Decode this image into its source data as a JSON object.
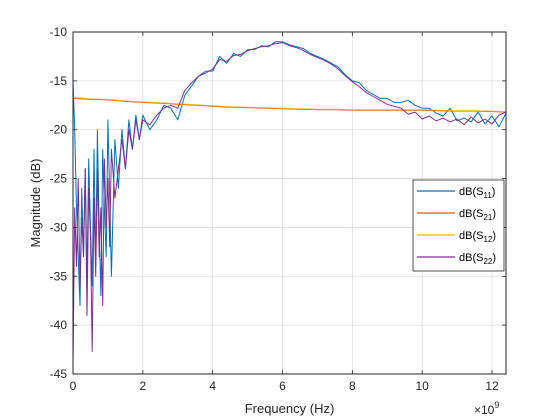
{
  "chart_data": {
    "type": "line",
    "xlabel": "Frequency (Hz)",
    "ylabel": "Magnitude (dB)",
    "x_exponent_label": "×10",
    "x_exponent_power": "9",
    "x_unit_scale": 1000000000,
    "xlim": [
      0,
      12400000000
    ],
    "ylim": [
      -45,
      -10
    ],
    "xticks": [
      0,
      2000000000,
      4000000000,
      6000000000,
      8000000000,
      10000000000,
      12000000000
    ],
    "xtick_labels": [
      "0",
      "2",
      "4",
      "6",
      "8",
      "10",
      "12"
    ],
    "yticks": [
      -45,
      -40,
      -35,
      -30,
      -25,
      -20,
      -15,
      -10
    ],
    "ytick_labels": [
      "-45",
      "-40",
      "-35",
      "-30",
      "-25",
      "-20",
      "-15",
      "-10"
    ],
    "grid": true,
    "legend_position": "right",
    "series": [
      {
        "name": "dB(S11)",
        "legend_main": "dB(S",
        "legend_sub": "11",
        "legend_close": ")",
        "color": "#0072BD",
        "x": [
          0,
          50000000,
          100000000,
          150000000,
          200000000,
          250000000,
          300000000,
          350000000,
          400000000,
          450000000,
          500000000,
          550000000,
          600000000,
          650000000,
          700000000,
          750000000,
          800000000,
          850000000,
          900000000,
          950000000,
          1000000000,
          1050000000,
          1100000000,
          1200000000,
          1300000000,
          1400000000,
          1500000000,
          1600000000,
          1700000000,
          1800000000,
          1900000000,
          2000000000,
          2200000000,
          2400000000,
          2600000000,
          2800000000,
          3000000000,
          3200000000,
          3400000000,
          3600000000,
          3800000000,
          4000000000,
          4200000000,
          4400000000,
          4600000000,
          4800000000,
          5000000000,
          5200000000,
          5400000000,
          5600000000,
          5800000000,
          6000000000,
          6200000000,
          6400000000,
          6600000000,
          6800000000,
          7000000000,
          7200000000,
          7400000000,
          7600000000,
          7800000000,
          8000000000,
          8200000000,
          8400000000,
          8600000000,
          8800000000,
          9000000000,
          9200000000,
          9400000000,
          9600000000,
          9800000000,
          10000000000,
          10200000000,
          10400000000,
          10600000000,
          10800000000,
          11000000000,
          11200000000,
          11400000000,
          11600000000,
          11800000000,
          12000000000,
          12200000000,
          12400000000
        ],
        "y": [
          -15,
          -20,
          -28,
          -33,
          -38,
          -26,
          -33,
          -24,
          -35,
          -23,
          -30,
          -36,
          -22,
          -34,
          -20,
          -30,
          -37,
          -22,
          -28,
          -33,
          -19,
          -27,
          -35,
          -21,
          -26,
          -20,
          -24,
          -19,
          -22,
          -18.5,
          -21,
          -18.5,
          -20,
          -19,
          -17.5,
          -17.8,
          -19,
          -16.5,
          -15.5,
          -14.5,
          -14,
          -14,
          -12.5,
          -13.2,
          -12.2,
          -12.5,
          -11.8,
          -11.8,
          -11.4,
          -11.5,
          -11,
          -11,
          -11.3,
          -11.5,
          -11.7,
          -12.2,
          -12.5,
          -12.8,
          -13.2,
          -13.6,
          -14.4,
          -15,
          -15.2,
          -16,
          -16.4,
          -16.8,
          -16.8,
          -17.2,
          -17.2,
          -17,
          -17.5,
          -17.8,
          -17.8,
          -18.3,
          -18.6,
          -17.8,
          -19.1,
          -18.8,
          -19.2,
          -18.2,
          -19.4,
          -18.6,
          -19.7,
          -18.3
        ]
      },
      {
        "name": "dB(S21)",
        "legend_main": "dB(S",
        "legend_sub": "21",
        "legend_close": ")",
        "color": "#D95319",
        "x": [
          0,
          500000000,
          1000000000,
          1500000000,
          2000000000,
          2500000000,
          3000000000,
          3500000000,
          4000000000,
          4500000000,
          5000000000,
          5500000000,
          6000000000,
          6500000000,
          7000000000,
          7500000000,
          8000000000,
          8500000000,
          9000000000,
          9500000000,
          10000000000,
          10500000000,
          11000000000,
          11500000000,
          12000000000,
          12400000000
        ],
        "y": [
          -16.8,
          -16.9,
          -16.95,
          -17.1,
          -17.2,
          -17.3,
          -17.4,
          -17.5,
          -17.6,
          -17.7,
          -17.75,
          -17.8,
          -17.85,
          -17.9,
          -17.95,
          -17.95,
          -18.0,
          -18.0,
          -18.0,
          -18.0,
          -18.0,
          -18.05,
          -18.1,
          -18.1,
          -18.15,
          -18.2
        ]
      },
      {
        "name": "dB(S12)",
        "legend_main": "dB(S",
        "legend_sub": "12",
        "legend_close": ")",
        "color": "#EDB120",
        "x": [
          0,
          500000000,
          1000000000,
          1500000000,
          2000000000,
          2500000000,
          3000000000,
          3500000000,
          4000000000,
          4500000000,
          5000000000,
          5500000000,
          6000000000,
          6500000000,
          7000000000,
          7500000000,
          8000000000,
          8500000000,
          9000000000,
          9500000000,
          10000000000,
          10500000000,
          11000000000,
          11500000000,
          12000000000,
          12400000000
        ],
        "y": [
          -16.7,
          -16.85,
          -16.9,
          -17.05,
          -17.15,
          -17.25,
          -17.35,
          -17.45,
          -17.55,
          -17.65,
          -17.7,
          -17.75,
          -17.8,
          -17.85,
          -17.9,
          -17.9,
          -17.95,
          -17.95,
          -17.95,
          -17.95,
          -17.95,
          -18.0,
          -18.05,
          -18.05,
          -18.1,
          -18.15
        ]
      },
      {
        "name": "dB(S22)",
        "legend_main": "dB(S",
        "legend_sub": "22",
        "legend_close": ")",
        "color": "#7E2F8E",
        "x": [
          0,
          50000000,
          100000000,
          150000000,
          200000000,
          250000000,
          300000000,
          350000000,
          400000000,
          450000000,
          500000000,
          550000000,
          600000000,
          650000000,
          700000000,
          750000000,
          800000000,
          850000000,
          900000000,
          950000000,
          1000000000,
          1050000000,
          1100000000,
          1200000000,
          1300000000,
          1400000000,
          1500000000,
          1600000000,
          1700000000,
          1800000000,
          1900000000,
          2000000000,
          2200000000,
          2400000000,
          2600000000,
          2800000000,
          3000000000,
          3200000000,
          3400000000,
          3600000000,
          3800000000,
          4000000000,
          4200000000,
          4400000000,
          4600000000,
          4800000000,
          5000000000,
          5200000000,
          5400000000,
          5600000000,
          5800000000,
          6000000000,
          6200000000,
          6400000000,
          6600000000,
          6800000000,
          7000000000,
          7200000000,
          7400000000,
          7600000000,
          7800000000,
          8000000000,
          8200000000,
          8400000000,
          8600000000,
          8800000000,
          9000000000,
          9200000000,
          9400000000,
          9600000000,
          9800000000,
          10000000000,
          10200000000,
          10400000000,
          10600000000,
          10800000000,
          11000000000,
          11200000000,
          11400000000,
          11600000000,
          11800000000,
          12000000000,
          12200000000,
          12400000000
        ],
        "y": [
          -44,
          -28,
          -34,
          -25,
          -36,
          -29,
          -33,
          -24,
          -39,
          -26,
          -31,
          -42.7,
          -27,
          -35,
          -24,
          -33,
          -28,
          -38,
          -23,
          -30,
          -25,
          -32,
          -22,
          -27,
          -24,
          -21,
          -24,
          -20,
          -22,
          -19,
          -21,
          -19,
          -19.5,
          -18.5,
          -17.8,
          -17.5,
          -17.8,
          -16,
          -15.2,
          -14.5,
          -14.2,
          -13.8,
          -12.8,
          -13,
          -12.4,
          -12.3,
          -11.9,
          -11.7,
          -11.5,
          -11.4,
          -11.2,
          -11.1,
          -11.4,
          -11.6,
          -11.9,
          -12.3,
          -12.6,
          -12.9,
          -13.3,
          -13.8,
          -14.5,
          -15.1,
          -15.6,
          -16.2,
          -16.6,
          -17,
          -17.4,
          -17.6,
          -17.8,
          -18.4,
          -18.2,
          -18.9,
          -18.6,
          -19.1,
          -18.8,
          -19.2,
          -18.9,
          -19.5,
          -18.7,
          -19.3,
          -18.9,
          -19.4,
          -18.5,
          -18.2
        ]
      }
    ]
  }
}
